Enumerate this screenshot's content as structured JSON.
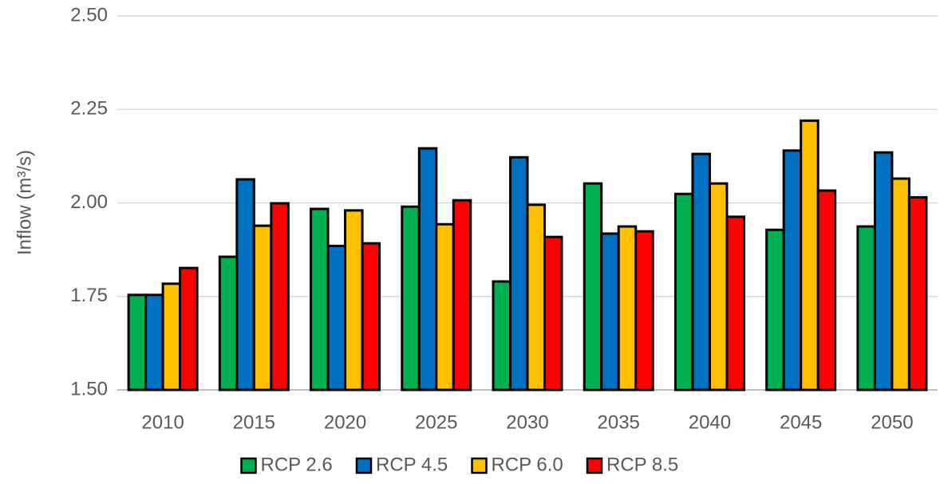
{
  "chart_data": {
    "type": "bar",
    "y_label": "Inflow (m³/s)",
    "categories": [
      "2010",
      "2015",
      "2020",
      "2025",
      "2030",
      "2035",
      "2040",
      "2045",
      "2050"
    ],
    "series": [
      {
        "name": "RCP 2.6",
        "color": "#00b050",
        "values": [
          1.754,
          1.856,
          1.984,
          1.99,
          1.79,
          2.052,
          2.024,
          1.928,
          1.937
        ]
      },
      {
        "name": "RCP 4.5",
        "color": "#0070c0",
        "values": [
          1.754,
          2.063,
          1.885,
          2.146,
          2.122,
          1.918,
          2.131,
          2.14,
          2.135
        ]
      },
      {
        "name": "RCP 6.0",
        "color": "#ffc000",
        "values": [
          1.784,
          1.939,
          1.98,
          1.943,
          1.995,
          1.937,
          2.052,
          2.22,
          2.065
        ]
      },
      {
        "name": "RCP 8.5",
        "color": "#ff0000",
        "values": [
          1.826,
          1.999,
          1.892,
          2.007,
          1.909,
          1.924,
          1.963,
          2.033,
          2.015
        ]
      }
    ],
    "ylim": [
      1.5,
      2.5
    ],
    "yticks": [
      {
        "value": 1.5,
        "label": "1.50"
      },
      {
        "value": 1.75,
        "label": "1.75"
      },
      {
        "value": 2.0,
        "label": "2.00"
      },
      {
        "value": 2.25,
        "label": "2.25"
      },
      {
        "value": 2.5,
        "label": "2.50"
      }
    ],
    "grid": true,
    "legend": "bottom"
  }
}
